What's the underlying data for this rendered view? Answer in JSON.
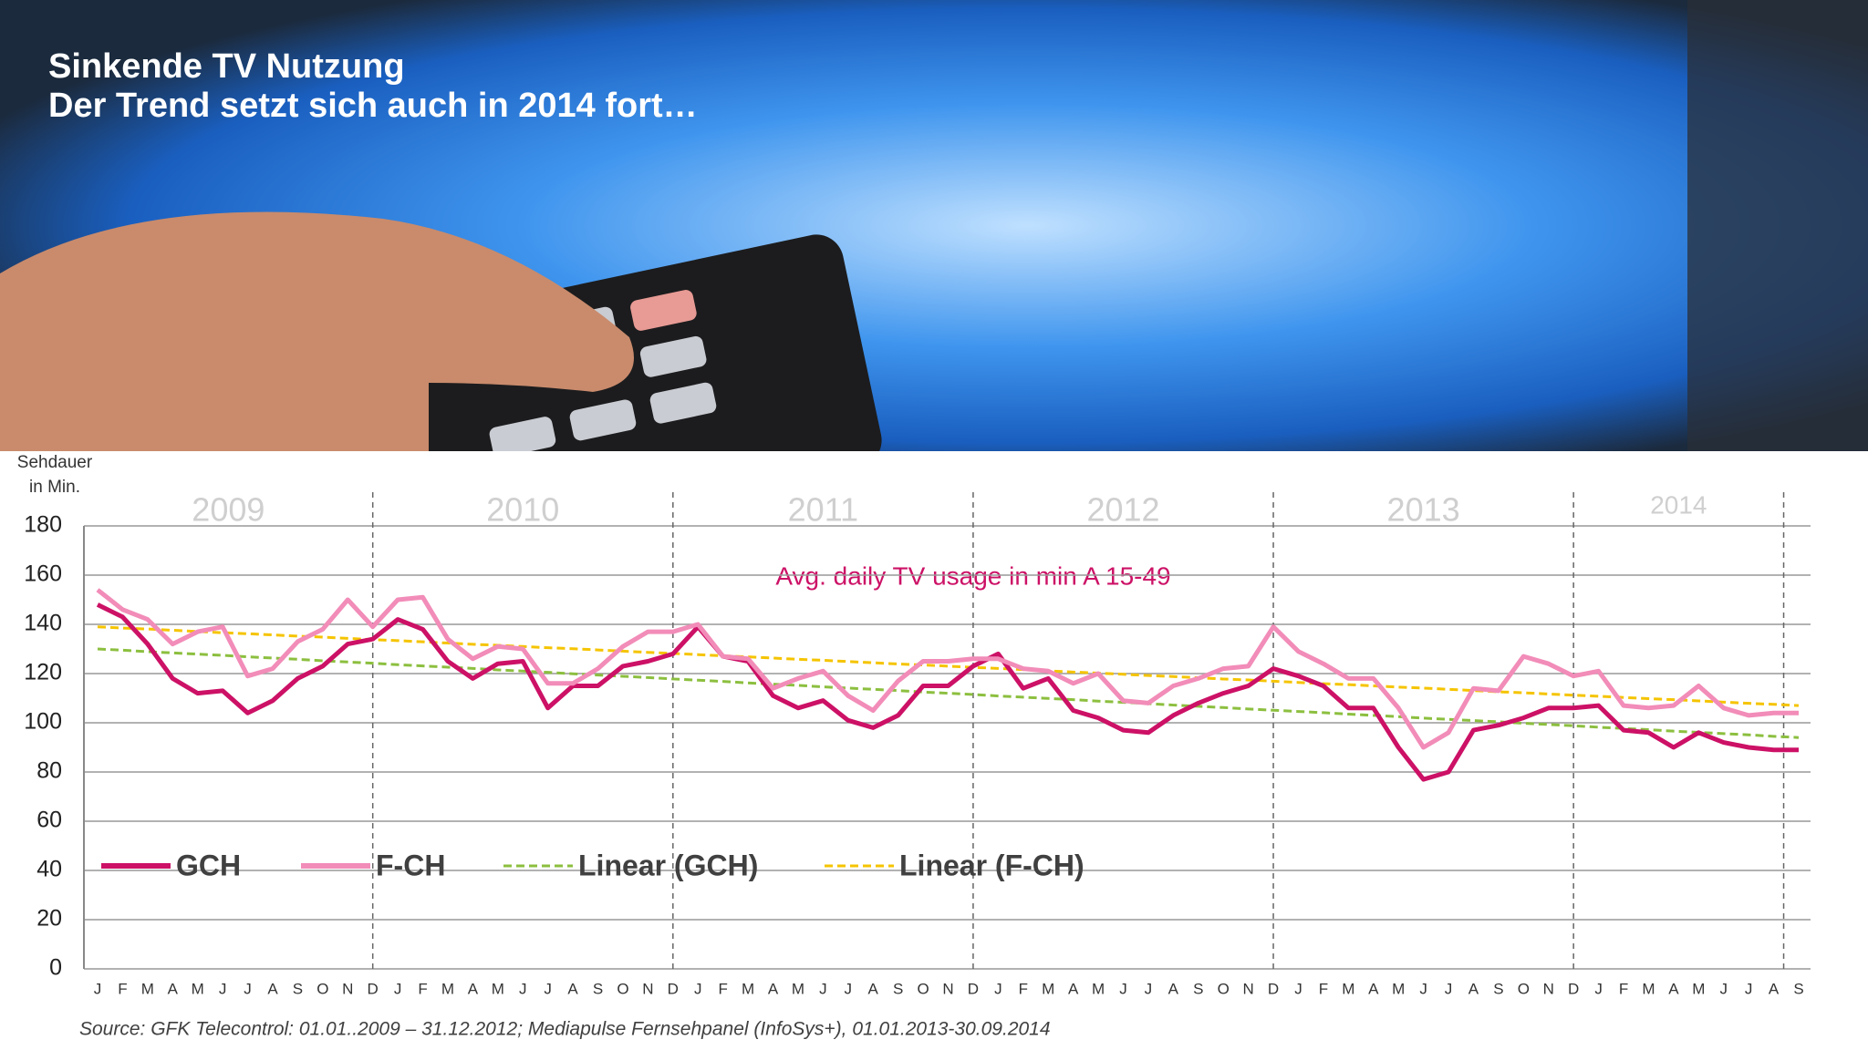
{
  "chart_data": {
    "type": "line",
    "title": [
      "Sinkende TV Nutzung",
      "Der Trend setzt sich auch in 2014 fort…"
    ],
    "y_label": [
      "Sehdauer",
      "in Min."
    ],
    "annotation": "Avg. daily TV usage in min A 15-49",
    "source": "Source: GFK Telecontrol: 01.01..2009  – 31.12.2012; Mediapulse Fernsehpanel (InfoSys+), 01.01.2013-30.09.2014",
    "years": [
      "2009",
      "2010",
      "2011",
      "2012",
      "2013",
      "2014"
    ],
    "categories": [
      "J",
      "F",
      "M",
      "A",
      "M",
      "J",
      "J",
      "A",
      "S",
      "O",
      "N",
      "D",
      "J",
      "F",
      "M",
      "A",
      "M",
      "J",
      "J",
      "A",
      "S",
      "O",
      "N",
      "D",
      "J",
      "F",
      "M",
      "A",
      "M",
      "J",
      "J",
      "A",
      "S",
      "O",
      "N",
      "D",
      "J",
      "F",
      "M",
      "A",
      "M",
      "J",
      "J",
      "A",
      "S",
      "O",
      "N",
      "D",
      "J",
      "F",
      "M",
      "A",
      "M",
      "J",
      "J",
      "A",
      "S",
      "O",
      "N",
      "D",
      "J",
      "F",
      "M",
      "A",
      "M",
      "J",
      "J",
      "A",
      "S"
    ],
    "ylim": [
      0,
      180
    ],
    "yticks": [
      0,
      20,
      40,
      60,
      80,
      100,
      120,
      140,
      160,
      180
    ],
    "grid": true,
    "series": [
      {
        "name": "GCH",
        "color": "#cc1166",
        "values": [
          148,
          143,
          132,
          118,
          112,
          113,
          104,
          109,
          118,
          123,
          132,
          134,
          142,
          138,
          125,
          118,
          124,
          125,
          106,
          115,
          115,
          123,
          125,
          128,
          139,
          127,
          125,
          111,
          106,
          109,
          101,
          98,
          103,
          115,
          115,
          123,
          128,
          114,
          118,
          105,
          102,
          97,
          96,
          103,
          108,
          112,
          115,
          122,
          119,
          115,
          106,
          106,
          90,
          77,
          80,
          97,
          99,
          102,
          106,
          106,
          107,
          97,
          96,
          90,
          96,
          92,
          90,
          89,
          89
        ]
      },
      {
        "name": "F-CH",
        "color": "#f28cb8",
        "values": [
          154,
          146,
          142,
          132,
          137,
          139,
          119,
          122,
          133,
          138,
          150,
          139,
          150,
          151,
          134,
          126,
          131,
          130,
          116,
          116,
          122,
          131,
          137,
          137,
          140,
          127,
          126,
          114,
          118,
          121,
          111,
          105,
          117,
          125,
          125,
          126,
          126,
          122,
          121,
          116,
          120,
          109,
          108,
          115,
          118,
          122,
          123,
          139,
          129,
          124,
          118,
          118,
          106,
          90,
          96,
          114,
          113,
          127,
          124,
          119,
          121,
          107,
          106,
          107,
          115,
          106,
          103,
          104,
          104
        ]
      },
      {
        "name": "Linear (GCH)",
        "color": "#8cbf3f",
        "dashed": true,
        "values": [
          130.0,
          129.5,
          128.9,
          128.4,
          127.9,
          127.4,
          126.8,
          126.3,
          125.8,
          125.2,
          124.7,
          124.2,
          123.6,
          123.1,
          122.6,
          122.1,
          121.5,
          121.0,
          120.5,
          119.9,
          119.4,
          118.9,
          118.4,
          117.8,
          117.3,
          116.8,
          116.2,
          115.7,
          115.2,
          114.6,
          114.1,
          113.6,
          113.1,
          112.5,
          112.0,
          111.5,
          110.9,
          110.4,
          109.9,
          109.4,
          108.8,
          108.3,
          107.8,
          107.2,
          106.7,
          106.2,
          105.6,
          105.1,
          104.6,
          104.1,
          103.5,
          103.0,
          102.5,
          101.9,
          101.4,
          100.9,
          100.4,
          99.8,
          99.3,
          98.8,
          98.2,
          97.7,
          97.2,
          96.6,
          96.1,
          95.6,
          95.1,
          94.5,
          94.0
        ]
      },
      {
        "name": "Linear (F-CH)",
        "color": "#f5c400",
        "dashed": true,
        "values": [
          139.0,
          138.5,
          138.1,
          137.6,
          137.1,
          136.6,
          136.2,
          135.7,
          135.2,
          134.8,
          134.3,
          133.8,
          133.4,
          132.9,
          132.4,
          131.9,
          131.5,
          131.0,
          130.5,
          130.1,
          129.6,
          129.1,
          128.6,
          128.2,
          127.7,
          127.2,
          126.8,
          126.3,
          125.8,
          125.4,
          124.9,
          124.4,
          123.9,
          123.5,
          123.0,
          122.5,
          122.1,
          121.6,
          121.1,
          120.6,
          120.2,
          119.7,
          119.2,
          118.8,
          118.3,
          117.8,
          117.4,
          116.9,
          116.4,
          115.9,
          115.5,
          115.0,
          114.5,
          114.1,
          113.6,
          113.1,
          112.6,
          112.2,
          111.7,
          111.2,
          110.8,
          110.3,
          109.8,
          109.4,
          108.9,
          108.4,
          107.9,
          107.5,
          107.0
        ]
      }
    ]
  }
}
